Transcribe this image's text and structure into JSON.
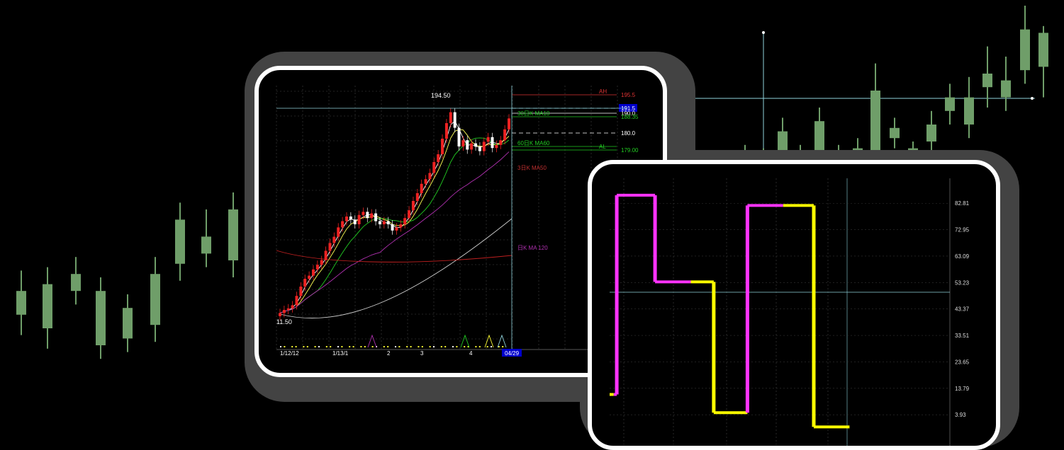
{
  "colors": {
    "background": "#000000",
    "candle_green": "#6f9e69",
    "panel_border": "#ffffff",
    "panel_shadow": "#434343",
    "crosshair": "#8fd3dd",
    "osc_high": "#ff33ff",
    "osc_low": "#ffff00"
  },
  "chart_data": [
    {
      "id": "background-candles",
      "type": "candlestick",
      "title": "",
      "candles": [
        {
          "open": 24,
          "close": 31,
          "high": 37,
          "low": 18
        },
        {
          "open": 20,
          "close": 33,
          "high": 38,
          "low": 14
        },
        {
          "open": 31,
          "close": 36,
          "high": 41,
          "low": 27
        },
        {
          "open": 31,
          "close": 15,
          "high": 35,
          "low": 11
        },
        {
          "open": 17,
          "close": 26,
          "high": 30,
          "low": 13
        },
        {
          "open": 21,
          "close": 36,
          "high": 41,
          "low": 16
        },
        {
          "open": 39,
          "close": 52,
          "high": 57,
          "low": 34
        },
        {
          "open": 42,
          "close": 47,
          "high": 55,
          "low": 38
        },
        {
          "open": 40,
          "close": 55,
          "high": 60,
          "low": 35
        },
        {
          "open": 10,
          "close": 4,
          "high": 12,
          "low": 1
        },
        {
          "open": 66,
          "close": 70,
          "high": 72,
          "low": 64
        },
        {
          "open": 66,
          "close": 68,
          "high": 74,
          "low": 63
        },
        {
          "open": 67,
          "close": 71,
          "high": 73,
          "low": 64
        },
        {
          "open": 67,
          "close": 78,
          "high": 82,
          "low": 64
        },
        {
          "open": 67,
          "close": 70,
          "high": 74,
          "low": 64
        },
        {
          "open": 68,
          "close": 81,
          "high": 85,
          "low": 64
        },
        {
          "open": 69,
          "close": 71,
          "high": 74,
          "low": 64
        },
        {
          "open": 70,
          "close": 73,
          "high": 76,
          "low": 66
        },
        {
          "open": 69,
          "close": 90,
          "high": 98,
          "low": 65
        },
        {
          "open": 76,
          "close": 79,
          "high": 82,
          "low": 73
        },
        {
          "open": 69,
          "close": 73,
          "high": 75,
          "low": 66
        },
        {
          "open": 75,
          "close": 80,
          "high": 84,
          "low": 72
        },
        {
          "open": 84,
          "close": 88,
          "high": 92,
          "low": 80
        },
        {
          "open": 80,
          "close": 88,
          "high": 94,
          "low": 76
        },
        {
          "open": 91,
          "close": 95,
          "high": 103,
          "low": 85
        },
        {
          "open": 88,
          "close": 93,
          "high": 100,
          "low": 84
        },
        {
          "open": 96,
          "close": 108,
          "high": 115,
          "low": 92
        },
        {
          "open": 97,
          "close": 107,
          "high": 109,
          "low": 88
        }
      ]
    },
    {
      "id": "price-chart",
      "type": "candlestick",
      "title": "",
      "high_label": "194.50",
      "low_label": "11.50",
      "x_tick_labels": [
        "1/12/12",
        "1/13/1",
        "2",
        "3",
        "4"
      ],
      "cursor_date": "04/29",
      "price_levels": [
        {
          "label": "AH",
          "value": "195.5"
        },
        {
          "label": "",
          "value": "191.5"
        },
        {
          "label": "",
          "value": "190.0"
        },
        {
          "label": "30日K MA10",
          "value": "188.35"
        },
        {
          "label": "",
          "value": "180.0"
        },
        {
          "label": "60日K MA60",
          "value": ""
        },
        {
          "label": "AL",
          "value": "179.00"
        }
      ],
      "ma_labels": [
        "3日K MA50",
        "日K MA 120"
      ],
      "series": [
        {
          "name": "",
          "values": [
            13,
            15,
            16,
            18,
            24,
            30,
            35,
            37,
            41,
            44,
            47,
            53,
            58,
            62,
            68,
            72,
            75,
            73,
            70,
            76,
            78,
            74,
            77,
            72,
            70,
            72,
            70,
            66,
            68,
            70,
            74,
            79,
            85,
            90,
            96,
            99,
            103,
            110,
            115,
            125,
            135,
            142,
            132,
            120,
            124,
            118,
            122,
            120,
            117,
            123,
            126,
            119,
            121,
            124,
            131,
            138
          ]
        }
      ]
    },
    {
      "id": "oscillator",
      "type": "line",
      "title": "",
      "y_tick_labels": [
        "82.81",
        "72.95",
        "63.09",
        "53.23",
        "43.37",
        "33.51",
        "23.65",
        "13.79",
        "3.93"
      ],
      "ylim": [
        -5,
        90
      ],
      "steps": [
        {
          "from": 0,
          "to": 8,
          "value": 11.5,
          "color": "#ffff00"
        },
        {
          "from": 8,
          "to": 14,
          "value": 11.5,
          "color": "#ff33ff"
        },
        {
          "from": 14,
          "to": 89,
          "value": 85.8,
          "color": "#ff33ff"
        },
        {
          "from": 89,
          "to": 159,
          "value": 53.5,
          "color": "#ff33ff"
        },
        {
          "from": 159,
          "to": 204,
          "value": 53.5,
          "color": "#ffff00"
        },
        {
          "from": 204,
          "to": 270,
          "value": 4.7,
          "color": "#ffff00"
        },
        {
          "from": 270,
          "to": 340,
          "value": 82.0,
          "color": "#ff33ff"
        },
        {
          "from": 340,
          "to": 400,
          "value": 82.0,
          "color": "#ffff00"
        },
        {
          "from": 400,
          "to": 470,
          "value": -0.6,
          "color": "#ffff00"
        }
      ]
    }
  ]
}
